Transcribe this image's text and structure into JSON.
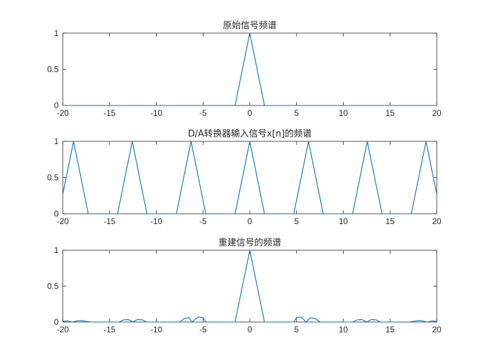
{
  "chart_data": [
    {
      "type": "line",
      "title": "原始信号频谱",
      "xlim": [
        -20,
        20
      ],
      "ylim": [
        0,
        1
      ],
      "xticks": [
        "-20",
        "-15",
        "-10",
        "-5",
        "0",
        "5",
        "10",
        "15",
        "20"
      ],
      "yticks": [
        "0",
        "0.5",
        "1"
      ],
      "series": [
        {
          "x": [
            -20,
            -1.57,
            0,
            1.57,
            20
          ],
          "y": [
            0,
            0,
            1,
            0,
            0
          ]
        }
      ],
      "grid": false,
      "color": "#0072BD"
    },
    {
      "type": "line",
      "title": "D/A转换器输入信号x[n]的频谱",
      "xlim": [
        -20,
        20
      ],
      "ylim": [
        0,
        1
      ],
      "xticks": [
        "-20",
        "-15",
        "-10",
        "-5",
        "0",
        "5",
        "10",
        "15",
        "20"
      ],
      "yticks": [
        "0",
        "0.5",
        "1"
      ],
      "series": [
        {
          "x": [
            -20,
            -18.85,
            -17.28,
            -14.14,
            -12.57,
            -11.0,
            -7.85,
            -6.28,
            -4.71,
            -1.57,
            0,
            1.57,
            4.71,
            6.28,
            7.85,
            11.0,
            12.57,
            14.14,
            17.28,
            18.85,
            20
          ],
          "y": [
            0.27,
            1,
            0,
            0,
            1,
            0,
            0,
            1,
            0,
            0,
            1,
            0,
            0,
            1,
            0,
            0,
            1,
            0,
            0,
            1,
            0.27
          ]
        }
      ],
      "grid": false,
      "color": "#0072BD"
    },
    {
      "type": "line",
      "title": "重建信号的频谱",
      "xlim": [
        -20,
        20
      ],
      "ylim": [
        0,
        1
      ],
      "xticks": [
        "-20",
        "-15",
        "-10",
        "-5",
        "0",
        "5",
        "10",
        "15",
        "20"
      ],
      "yticks": [
        "0",
        "0.5",
        "1"
      ],
      "series": [
        {
          "x": [
            -20,
            -19.5,
            -19,
            -18.5,
            -18,
            -17.5,
            -17,
            -14,
            -13.5,
            -13,
            -12.5,
            -12,
            -11.5,
            -11,
            -7.5,
            -7,
            -6.5,
            -6.2,
            -5.5,
            -5,
            -4.7,
            -1.57,
            0,
            1.57,
            4.7,
            5,
            5.5,
            6,
            6.5,
            7,
            7.5,
            11,
            11.5,
            12,
            12.5,
            13,
            13.5,
            14,
            17,
            17.5,
            18,
            18.5,
            19,
            19.5,
            20
          ],
          "y": [
            0.01,
            0.015,
            0,
            0.015,
            0.02,
            0.01,
            0,
            0,
            0.03,
            0.035,
            0,
            0.035,
            0.03,
            0,
            0,
            0.05,
            0.06,
            0,
            0.07,
            0.06,
            0,
            0,
            1,
            0,
            0,
            0.06,
            0.07,
            0,
            0.06,
            0.05,
            0,
            0,
            0.03,
            0.035,
            0,
            0.035,
            0.03,
            0,
            0,
            0.01,
            0.02,
            0.015,
            0,
            0.015,
            0.01
          ]
        }
      ],
      "grid": false,
      "color": "#0072BD"
    }
  ]
}
